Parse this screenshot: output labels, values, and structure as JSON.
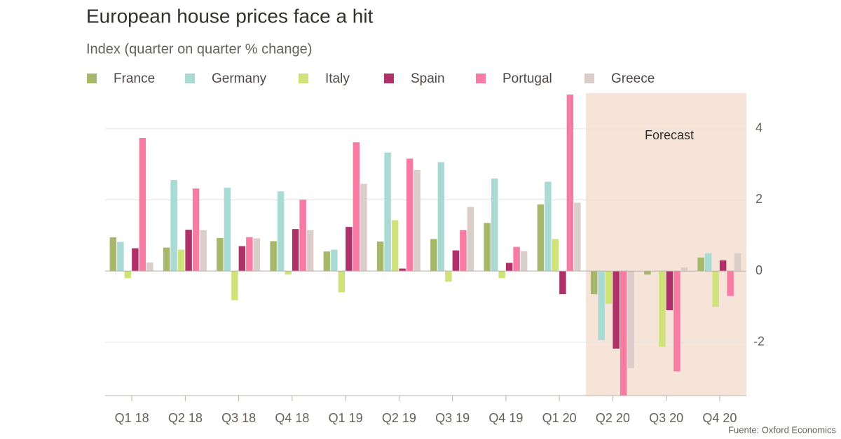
{
  "chart_data": {
    "type": "bar",
    "title": "European house prices face a hit",
    "subtitle": "Index (quarter on quarter % change)",
    "annotation": "Forecast",
    "source": "Fuente: Oxford Economics",
    "categories": [
      "Q1 18",
      "Q2 18",
      "Q3 18",
      "Q4 18",
      "Q1 19",
      "Q2 19",
      "Q3 19",
      "Q4 19",
      "Q1 20",
      "Q2 20",
      "Q3 20",
      "Q4 20"
    ],
    "series": [
      {
        "name": "France",
        "color": "#a7b86a",
        "values": [
          0.95,
          0.66,
          0.93,
          0.84,
          0.55,
          0.83,
          0.9,
          1.35,
          1.87,
          -0.65,
          -0.1,
          0.38
        ]
      },
      {
        "name": "Germany",
        "color": "#a9dbd4",
        "values": [
          0.82,
          2.56,
          2.34,
          2.24,
          0.6,
          3.33,
          3.06,
          2.6,
          2.51,
          -1.94,
          0,
          0.5
        ]
      },
      {
        "name": "Italy",
        "color": "#d0e27a",
        "values": [
          -0.2,
          0.6,
          -0.82,
          -0.1,
          -0.6,
          1.43,
          -0.3,
          -0.2,
          0.9,
          -0.92,
          -2.13,
          -1.0
        ]
      },
      {
        "name": "Spain",
        "color": "#b0316a",
        "values": [
          0.64,
          1.16,
          0.7,
          1.18,
          1.24,
          0.07,
          0.58,
          0.23,
          -0.65,
          -2.18,
          -1.1,
          0.3
        ]
      },
      {
        "name": "Portugal",
        "color": "#f87ba4",
        "values": [
          3.74,
          2.32,
          0.95,
          2.01,
          3.62,
          3.16,
          1.15,
          0.68,
          4.96,
          -3.6,
          -2.82,
          -0.7
        ]
      },
      {
        "name": "Greece",
        "color": "#dacdca",
        "values": [
          0.24,
          1.15,
          0.92,
          1.15,
          2.45,
          2.84,
          1.8,
          0.56,
          1.92,
          -2.73,
          0.1,
          0.5
        ]
      }
    ],
    "ylim": [
      -3.5,
      5
    ],
    "yticks": [
      -2,
      0,
      2,
      4
    ],
    "grid": true
  }
}
